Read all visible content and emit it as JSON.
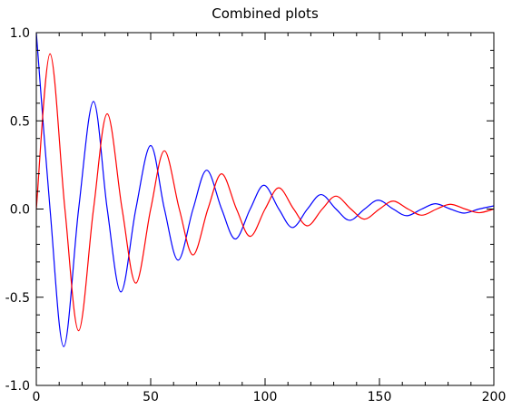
{
  "chart_data": {
    "type": "line",
    "title": "Combined plots",
    "xlabel": "",
    "ylabel": "",
    "xlim": [
      0,
      200
    ],
    "ylim": [
      -1.0,
      1.0
    ],
    "x_ticks": [
      0,
      50,
      100,
      150,
      200
    ],
    "x_tick_labels": [
      "0",
      "50",
      "100",
      "150",
      "200"
    ],
    "y_ticks": [
      1.0,
      0.5,
      0.0,
      -0.5,
      -1.0
    ],
    "y_tick_labels": [
      "1.0",
      "0.5",
      "0.0",
      "-0.5",
      "-1.0"
    ],
    "grid": false,
    "series": [
      {
        "color": "#0000ff",
        "x": [
          0,
          6,
          12,
          18.5,
          25,
          31,
          37,
          43.5,
          50,
          56,
          62,
          68.5,
          74.5,
          81,
          87,
          93.5,
          99.5,
          106,
          112,
          118.5,
          124.5,
          131,
          137,
          143.5,
          149.5,
          156,
          162,
          168.5,
          174.5,
          181,
          187,
          193.5,
          200
        ],
        "y": [
          1.0,
          0.0,
          -0.78,
          0.0,
          0.61,
          0.0,
          -0.47,
          0.0,
          0.36,
          0.0,
          -0.29,
          0.0,
          0.22,
          0.0,
          -0.17,
          0.0,
          0.135,
          0.0,
          -0.105,
          0.0,
          0.082,
          0.0,
          -0.064,
          0.0,
          0.05,
          0.0,
          -0.038,
          0.0,
          0.03,
          0.0,
          -0.023,
          0.0,
          0.018
        ]
      },
      {
        "color": "#ff0000",
        "x": [
          0,
          6,
          12.5,
          18.5,
          25,
          31,
          37.5,
          43.5,
          50,
          56,
          62.5,
          68.5,
          75,
          81,
          87.5,
          93.5,
          100,
          106,
          112.5,
          118.5,
          125,
          131,
          137.5,
          143.5,
          150,
          156,
          162.5,
          168.5,
          175,
          181,
          187.5,
          193.5,
          200
        ],
        "y": [
          0.0,
          0.88,
          0.0,
          -0.69,
          0.0,
          0.54,
          0.0,
          -0.42,
          0.0,
          0.33,
          0.0,
          -0.26,
          0.0,
          0.2,
          0.0,
          -0.155,
          0.0,
          0.12,
          0.0,
          -0.095,
          0.0,
          0.073,
          0.0,
          -0.057,
          0.0,
          0.045,
          0.0,
          -0.035,
          0.0,
          0.027,
          0.0,
          -0.021,
          0.0
        ]
      }
    ]
  }
}
